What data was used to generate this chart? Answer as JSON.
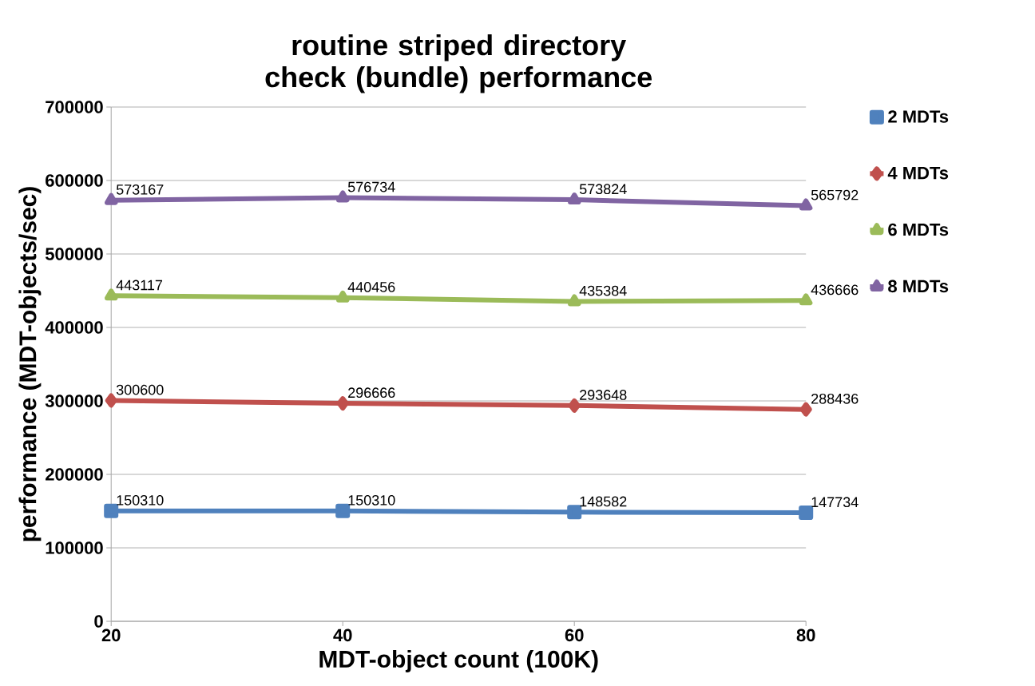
{
  "chart_data": {
    "type": "line",
    "title": "routine striped directory check (bundle) performance",
    "xlabel": "MDT-object count (100K)",
    "ylabel": "performance (MDT-objects/sec)",
    "x": [
      20,
      40,
      60,
      80
    ],
    "series": [
      {
        "name": "2 MDTs",
        "color": "#4f81bd",
        "marker": "square",
        "values": [
          150310,
          150310,
          148582,
          147734
        ]
      },
      {
        "name": "4 MDTs",
        "color": "#c0504d",
        "marker": "diamond",
        "values": [
          300600,
          296666,
          293648,
          288436
        ]
      },
      {
        "name": "6 MDTs",
        "color": "#9bbb59",
        "marker": "triangle",
        "values": [
          443117,
          440456,
          435384,
          436666
        ]
      },
      {
        "name": "8 MDTs",
        "color": "#8064a2",
        "marker": "triangle",
        "values": [
          573167,
          576734,
          573824,
          565792
        ]
      }
    ],
    "xlim": [
      20,
      80
    ],
    "xticks": [
      20,
      40,
      60,
      80
    ],
    "ylim": [
      0,
      700000
    ],
    "yticks": [
      0,
      100000,
      200000,
      300000,
      400000,
      500000,
      600000,
      700000
    ],
    "grid": "y",
    "legend": "right",
    "data_labels": true,
    "line_style": "solid"
  }
}
